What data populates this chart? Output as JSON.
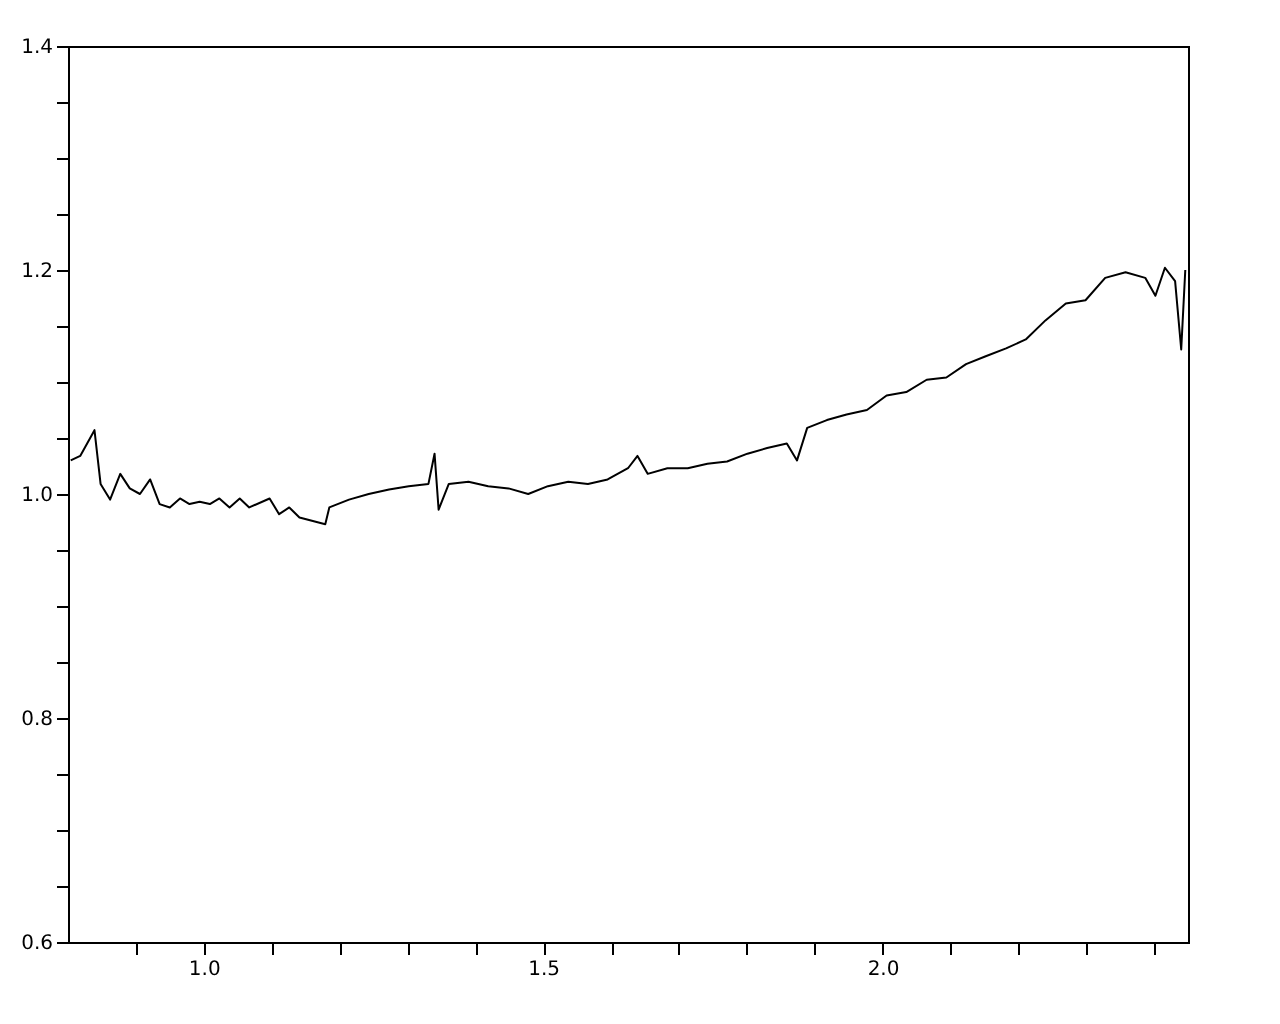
{
  "chart_data": {
    "type": "line",
    "x": [
      0.804,
      0.818,
      0.839,
      0.848,
      0.862,
      0.877,
      0.891,
      0.906,
      0.921,
      0.935,
      0.95,
      0.965,
      0.979,
      0.994,
      1.009,
      1.023,
      1.038,
      1.053,
      1.067,
      1.097,
      1.111,
      1.126,
      1.141,
      1.179,
      1.185,
      1.214,
      1.243,
      1.273,
      1.302,
      1.331,
      1.34,
      1.346,
      1.361,
      1.39,
      1.419,
      1.449,
      1.478,
      1.507,
      1.537,
      1.566,
      1.595,
      1.625,
      1.639,
      1.654,
      1.683,
      1.713,
      1.742,
      1.771,
      1.801,
      1.83,
      1.859,
      1.874,
      1.889,
      1.918,
      1.947,
      1.977,
      2.006,
      2.035,
      2.065,
      2.094,
      2.123,
      2.152,
      2.182,
      2.211,
      2.24,
      2.27,
      2.299,
      2.328,
      2.358,
      2.387,
      2.402,
      2.416,
      2.431,
      2.44,
      2.446
    ],
    "series": [
      {
        "color": "#000000",
        "values": [
          1.03,
          1.034,
          1.057,
          1.009,
          0.995,
          1.018,
          1.005,
          1.0,
          1.013,
          0.991,
          0.988,
          0.996,
          0.991,
          0.993,
          0.991,
          0.996,
          0.988,
          0.996,
          0.988,
          0.996,
          0.982,
          0.988,
          0.979,
          0.973,
          0.988,
          0.995,
          1.0,
          1.004,
          1.007,
          1.009,
          1.036,
          0.986,
          1.009,
          1.011,
          1.007,
          1.005,
          1.0,
          1.007,
          1.011,
          1.009,
          1.013,
          1.023,
          1.034,
          1.018,
          1.023,
          1.023,
          1.027,
          1.029,
          1.036,
          1.041,
          1.045,
          1.03,
          1.059,
          1.066,
          1.071,
          1.075,
          1.088,
          1.091,
          1.102,
          1.104,
          1.116,
          1.123,
          1.13,
          1.138,
          1.155,
          1.17,
          1.173,
          1.193,
          1.198,
          1.193,
          1.177,
          1.202,
          1.19,
          1.129,
          1.2
        ]
      }
    ],
    "xlim": [
      0.8,
      2.45
    ],
    "xticks": [
      {
        "value": 0.9,
        "label": null
      },
      {
        "value": 1.0,
        "label": "1.0"
      },
      {
        "value": 1.1,
        "label": null
      },
      {
        "value": 1.2,
        "label": null
      },
      {
        "value": 1.3,
        "label": null
      },
      {
        "value": 1.4,
        "label": null
      },
      {
        "value": 1.5,
        "label": "1.5"
      },
      {
        "value": 1.6,
        "label": null
      },
      {
        "value": 1.7,
        "label": null
      },
      {
        "value": 1.8,
        "label": null
      },
      {
        "value": 1.9,
        "label": null
      },
      {
        "value": 2.0,
        "label": "2.0"
      },
      {
        "value": 2.1,
        "label": null
      },
      {
        "value": 2.2,
        "label": null
      },
      {
        "value": 2.3,
        "label": null
      },
      {
        "value": 2.4,
        "label": null
      }
    ],
    "ylim": [
      0.6,
      1.4
    ],
    "yticks": [
      {
        "value": 0.6,
        "label": "0.6"
      },
      {
        "value": 0.65,
        "label": null
      },
      {
        "value": 0.7,
        "label": null
      },
      {
        "value": 0.75,
        "label": null
      },
      {
        "value": 0.8,
        "label": "0.8"
      },
      {
        "value": 0.85,
        "label": null
      },
      {
        "value": 0.9,
        "label": null
      },
      {
        "value": 0.95,
        "label": null
      },
      {
        "value": 1.0,
        "label": "1.0"
      },
      {
        "value": 1.05,
        "label": null
      },
      {
        "value": 1.1,
        "label": null
      },
      {
        "value": 1.15,
        "label": null
      },
      {
        "value": 1.2,
        "label": "1.2"
      },
      {
        "value": 1.25,
        "label": null
      },
      {
        "value": 1.3,
        "label": null
      },
      {
        "value": 1.35,
        "label": null
      },
      {
        "value": 1.4,
        "label": "1.4"
      }
    ],
    "grid": false,
    "marker": "none",
    "line_style": "solid"
  }
}
